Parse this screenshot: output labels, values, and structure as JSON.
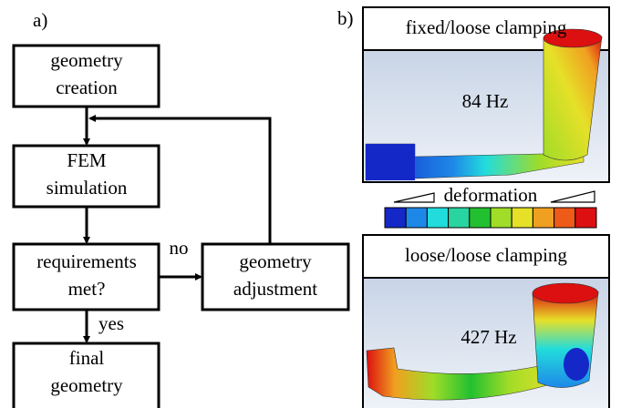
{
  "panel_a": {
    "label": "a)",
    "nodes": [
      {
        "lines": [
          "geometry",
          "creation"
        ]
      },
      {
        "lines": [
          "FEM",
          "simulation"
        ]
      },
      {
        "lines": [
          "requirements",
          "met?"
        ]
      },
      {
        "lines": [
          "geometry",
          "adjustment"
        ]
      },
      {
        "lines": [
          "final",
          "geometry"
        ]
      }
    ],
    "edge_labels": {
      "no": "no",
      "yes": "yes"
    }
  },
  "panel_b": {
    "label": "b)",
    "views": [
      {
        "title": "fixed/loose clamping",
        "frequency": "84 Hz"
      },
      {
        "title": "loose/loose clamping",
        "frequency": "427 Hz"
      }
    ],
    "legend": {
      "label": "deformation",
      "colors": [
        "#1428c8",
        "#1e88e8",
        "#22dcdc",
        "#28d4a0",
        "#22c030",
        "#a0dc28",
        "#e6e028",
        "#f0a020",
        "#ee5a18",
        "#dc1010"
      ]
    }
  }
}
